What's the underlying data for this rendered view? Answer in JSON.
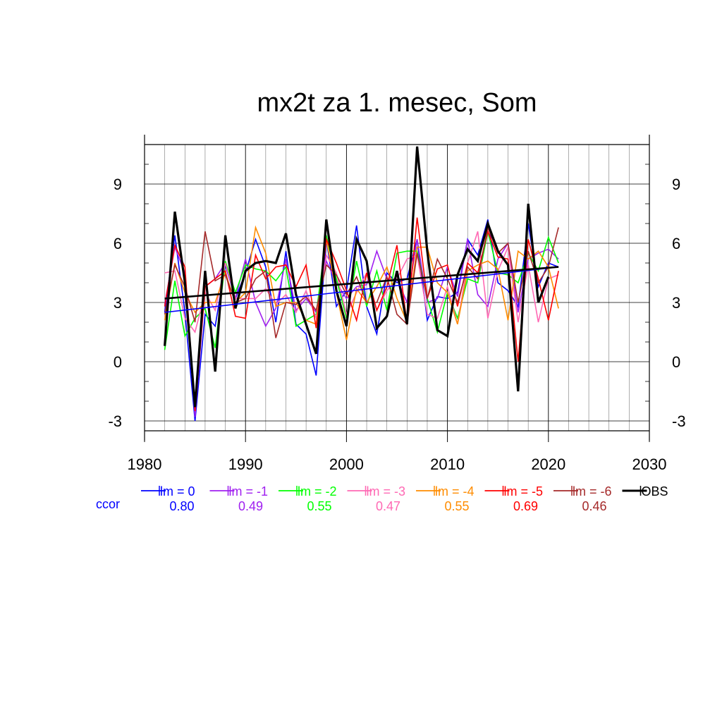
{
  "chart_data": {
    "type": "line",
    "title": "mx2t za 1. mesec, Som",
    "xlabel": "",
    "ylabel": "",
    "xlim": [
      1980,
      2030
    ],
    "ylim": [
      -3.5,
      11
    ],
    "x_ticks": [
      1980,
      1990,
      2000,
      2010,
      2020,
      2030
    ],
    "x_tick_labels": [
      "1980",
      "1990",
      "2000",
      "2010",
      "2020",
      "2030"
    ],
    "y_ticks": [
      -3,
      0,
      3,
      6,
      9
    ],
    "y_tick_labels": [
      "-3",
      "0",
      "3",
      "6",
      "9"
    ],
    "grid": true,
    "legend_position": "bottom",
    "ccor_label": "ccor",
    "years": [
      1982,
      1983,
      1984,
      1985,
      1986,
      1987,
      1988,
      1989,
      1990,
      1991,
      1992,
      1993,
      1994,
      1995,
      1996,
      1997,
      1998,
      1999,
      2000,
      2001,
      2002,
      2003,
      2004,
      2005,
      2006,
      2007,
      2008,
      2009,
      2010,
      2011,
      2012,
      2013,
      2014,
      2015,
      2016,
      2017,
      2018,
      2019,
      2020,
      2021
    ],
    "series": [
      {
        "name": "lm = 0",
        "color": "#0000ff",
        "ccor": "0.80",
        "width": 1.6,
        "values": [
          2.5,
          6.4,
          2.5,
          -3.0,
          2.4,
          1.8,
          4.9,
          3.2,
          4.5,
          6.2,
          4.8,
          2.0,
          5.6,
          1.9,
          1.4,
          -0.7,
          6.2,
          2.8,
          3.6,
          6.9,
          2.8,
          1.4,
          4.5,
          4.0,
          4.2,
          6.2,
          2.1,
          3.3,
          3.2,
          3.5,
          6.2,
          5.4,
          7.2,
          4.0,
          3.6,
          2.8,
          7.0,
          3.8,
          5.0,
          4.8
        ],
        "trend": [
          2.5,
          4.8
        ]
      },
      {
        "name": "lm = -1",
        "color": "#a020f0",
        "ccor": "0.49",
        "width": 1.6,
        "values": [
          2.9,
          5.8,
          4.5,
          -2.8,
          3.8,
          4.2,
          5.0,
          3.2,
          5.2,
          3.0,
          1.8,
          2.7,
          5.2,
          2.6,
          3.2,
          2.5,
          5.1,
          4.0,
          3.2,
          3.8,
          3.9,
          5.6,
          4.2,
          4.2,
          3.0,
          6.2,
          3.0,
          3.2,
          4.8,
          3.3,
          6.2,
          3.4,
          2.8,
          5.2,
          6.0,
          2.5,
          5.2,
          5.5,
          5.7,
          5.2
        ]
      },
      {
        "name": "lm = -2",
        "color": "#00ff00",
        "ccor": "0.55",
        "width": 1.6,
        "values": [
          0.6,
          4.1,
          1.3,
          2.2,
          2.7,
          0.7,
          5.1,
          3.5,
          4.9,
          4.7,
          4.6,
          4.1,
          4.8,
          1.8,
          2.1,
          2.4,
          6.4,
          4.2,
          2.2,
          5.1,
          2.8,
          4.6,
          2.6,
          5.5,
          5.6,
          5.6,
          3.2,
          1.5,
          3.5,
          2.2,
          4.2,
          4.0,
          6.6,
          4.5,
          4.4,
          4.0,
          5.5,
          4.6,
          6.3,
          5.0
        ]
      },
      {
        "name": "lm = -3",
        "color": "#ff69b4",
        "ccor": "0.47",
        "width": 1.6,
        "values": [
          4.5,
          4.6,
          2.2,
          1.5,
          3.5,
          2.6,
          5.0,
          3.2,
          3.2,
          3.2,
          3.7,
          2.9,
          3.4,
          2.5,
          3.6,
          2.2,
          5.4,
          4.5,
          2.4,
          3.5,
          4.5,
          2.6,
          3.6,
          4.2,
          5.2,
          5.4,
          2.4,
          2.2,
          3.8,
          1.9,
          5.0,
          6.6,
          2.2,
          4.6,
          5.8,
          2.0,
          4.9,
          2.0,
          4.2,
          4.4
        ]
      },
      {
        "name": "lm = -4",
        "color": "#ff8c00",
        "ccor": "0.55",
        "width": 1.6,
        "values": [
          2.1,
          5.0,
          3.5,
          2.5,
          3.0,
          3.0,
          4.5,
          3.0,
          3.5,
          6.8,
          5.5,
          2.8,
          3.0,
          3.0,
          2.1,
          1.9,
          6.2,
          3.5,
          1.1,
          3.7,
          3.0,
          3.8,
          4.8,
          3.2,
          2.0,
          5.8,
          5.8,
          4.0,
          3.5,
          1.9,
          4.6,
          4.9,
          5.1,
          4.7,
          2.1,
          5.6,
          5.2,
          5.6,
          4.8,
          2.7
        ]
      },
      {
        "name": "lm = -5",
        "color": "#ff0000",
        "ccor": "0.69",
        "width": 1.6,
        "values": [
          2.8,
          5.9,
          4.8,
          -2.5,
          3.8,
          4.2,
          4.6,
          2.3,
          2.2,
          5.4,
          4.2,
          4.8,
          4.9,
          3.8,
          4.9,
          1.7,
          6.2,
          5.0,
          3.6,
          2.1,
          4.5,
          2.6,
          3.8,
          5.9,
          1.9,
          7.3,
          3.2,
          4.7,
          4.9,
          2.8,
          5.0,
          4.5,
          6.6,
          5.3,
          5.2,
          0.0,
          6.2,
          4.2,
          2.1,
          4.6
        ]
      },
      {
        "name": "lm = -6",
        "color": "#a52a2a",
        "ccor": "0.46",
        "width": 1.6,
        "values": [
          2.4,
          4.9,
          3.8,
          2.0,
          6.6,
          4.1,
          4.4,
          3.0,
          3.2,
          4.2,
          4.6,
          1.2,
          3.0,
          2.9,
          3.3,
          2.6,
          4.9,
          4.4,
          3.4,
          4.3,
          3.0,
          3.0,
          4.3,
          2.4,
          1.9,
          5.5,
          3.2,
          5.2,
          4.2,
          3.0,
          4.8,
          4.2,
          6.8,
          5.5,
          6.0,
          3.0,
          5.6,
          4.0,
          4.8,
          6.8
        ]
      },
      {
        "name": "OBS",
        "color": "#000000",
        "ccor": "",
        "width": 3.2,
        "values": [
          0.8,
          7.6,
          4.0,
          -2.3,
          4.6,
          -0.5,
          6.4,
          2.7,
          4.6,
          5.0,
          5.1,
          5.0,
          6.5,
          3.4,
          1.9,
          0.4,
          7.2,
          3.6,
          1.8,
          6.2,
          5.1,
          1.7,
          2.3,
          4.6,
          1.9,
          10.9,
          5.6,
          1.6,
          1.3,
          4.4,
          5.7,
          5.1,
          7.0,
          5.6,
          4.9,
          -1.5,
          8.0,
          3.0,
          4.3,
          null
        ],
        "trend": [
          3.2,
          4.8
        ]
      }
    ]
  }
}
